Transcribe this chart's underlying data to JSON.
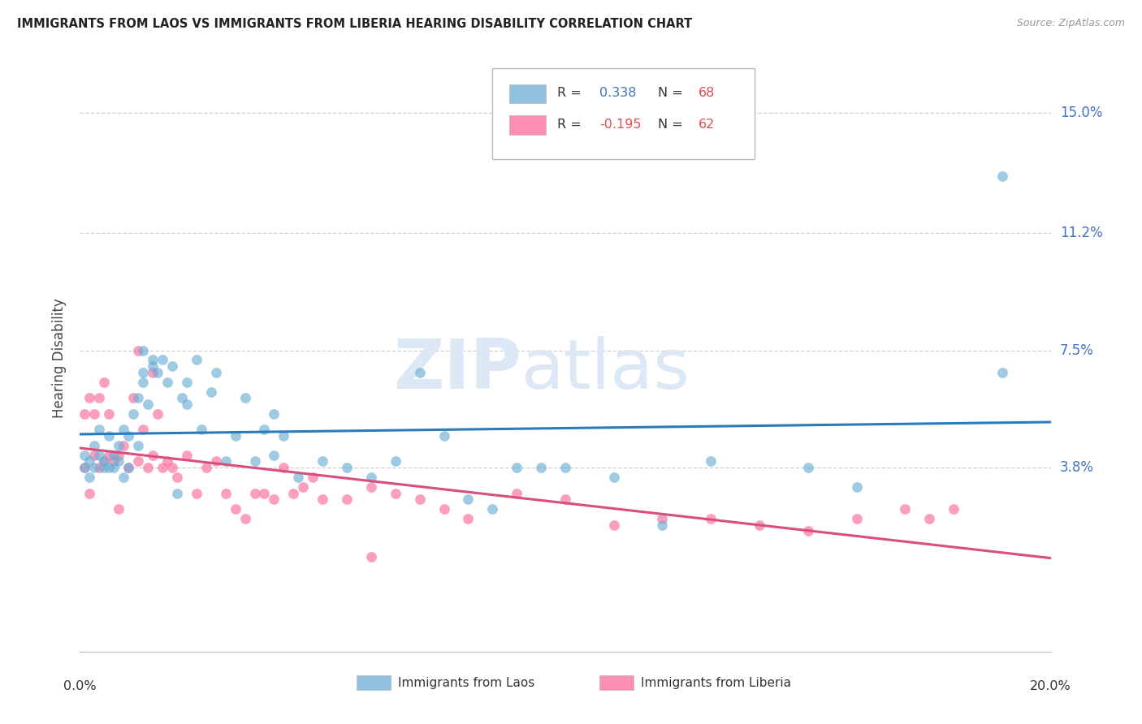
{
  "title": "IMMIGRANTS FROM LAOS VS IMMIGRANTS FROM LIBERIA HEARING DISABILITY CORRELATION CHART",
  "source": "Source: ZipAtlas.com",
  "ylabel": "Hearing Disability",
  "laos_color": "#6baed6",
  "liberia_color": "#fb6a9a",
  "laos_line_color": "#2b7bba",
  "liberia_line_color": "#d94f7a",
  "laos_R": "0.338",
  "laos_N": "68",
  "liberia_R": "-0.195",
  "liberia_N": "62",
  "r_color_blue": "#4472c4",
  "n_color_red": "#e05050",
  "ytick_vals": [
    0.038,
    0.075,
    0.112,
    0.15
  ],
  "ytick_labels": [
    "3.8%",
    "7.5%",
    "11.2%",
    "15.0%"
  ],
  "xlim": [
    0.0,
    0.2
  ],
  "ylim": [
    -0.02,
    0.165
  ],
  "background_color": "#ffffff",
  "grid_color": "#d0d0d0",
  "watermark_color": "#dce8f5"
}
